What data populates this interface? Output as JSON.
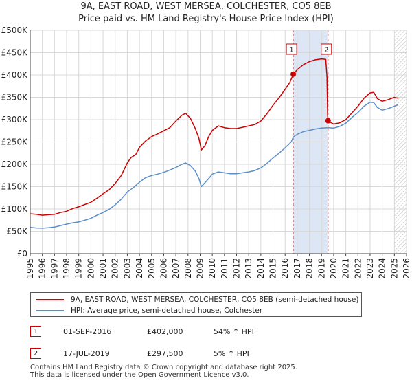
{
  "title_line1": "9A, EAST ROAD, WEST MERSEA, COLCHESTER, CO5 8EB",
  "title_line2": "Price paid vs. HM Land Registry's House Price Index (HPI)",
  "chart_data": {
    "type": "line",
    "title": "9A, EAST ROAD, WEST MERSEA, COLCHESTER, CO5 8EB",
    "subtitle": "Price paid vs. HM Land Registry's House Price Index (HPI)",
    "xlabel": "",
    "ylabel": "",
    "xlim": [
      1995,
      2026
    ],
    "ylim": [
      0,
      500000
    ],
    "y_ticks": [
      {
        "value": 0,
        "label": "£0"
      },
      {
        "value": 50000,
        "label": "£50K"
      },
      {
        "value": 100000,
        "label": "£100K"
      },
      {
        "value": 150000,
        "label": "£150K"
      },
      {
        "value": 200000,
        "label": "£200K"
      },
      {
        "value": 250000,
        "label": "£250K"
      },
      {
        "value": 300000,
        "label": "£300K"
      },
      {
        "value": 350000,
        "label": "£350K"
      },
      {
        "value": 400000,
        "label": "£400K"
      },
      {
        "value": 450000,
        "label": "£450K"
      },
      {
        "value": 500000,
        "label": "£500K"
      }
    ],
    "x_ticks": [
      "1995",
      "1996",
      "1997",
      "1998",
      "1999",
      "2000",
      "2001",
      "2002",
      "2003",
      "2004",
      "2005",
      "2006",
      "2007",
      "2008",
      "2009",
      "2010",
      "2011",
      "2012",
      "2013",
      "2014",
      "2015",
      "2016",
      "2017",
      "2018",
      "2019",
      "2020",
      "2021",
      "2022",
      "2023",
      "2024",
      "2025",
      "2026"
    ],
    "grid": true,
    "shaded_region": [
      2016.67,
      2019.54
    ],
    "hatched_region": [
      2025.0,
      2026
    ],
    "series": [
      {
        "name": "9A, EAST ROAD, WEST MERSEA, COLCHESTER, CO5 8EB (semi-detached house)",
        "color": "#cc0000",
        "points": [
          [
            1995.0,
            89000
          ],
          [
            1995.5,
            88000
          ],
          [
            1996.0,
            86000
          ],
          [
            1996.5,
            87000
          ],
          [
            1997.0,
            88000
          ],
          [
            1997.5,
            92000
          ],
          [
            1998.0,
            95000
          ],
          [
            1998.5,
            101000
          ],
          [
            1999.0,
            105000
          ],
          [
            1999.5,
            110000
          ],
          [
            2000.0,
            115000
          ],
          [
            2000.5,
            124000
          ],
          [
            2001.0,
            134000
          ],
          [
            2001.5,
            143000
          ],
          [
            2002.0,
            157000
          ],
          [
            2002.5,
            175000
          ],
          [
            2003.0,
            203000
          ],
          [
            2003.3,
            215000
          ],
          [
            2003.7,
            222000
          ],
          [
            2004.0,
            238000
          ],
          [
            2004.5,
            252000
          ],
          [
            2005.0,
            262000
          ],
          [
            2005.5,
            268000
          ],
          [
            2006.0,
            275000
          ],
          [
            2006.5,
            282000
          ],
          [
            2007.0,
            297000
          ],
          [
            2007.5,
            310000
          ],
          [
            2007.8,
            314000
          ],
          [
            2008.2,
            303000
          ],
          [
            2008.6,
            280000
          ],
          [
            2008.9,
            258000
          ],
          [
            2009.1,
            232000
          ],
          [
            2009.4,
            242000
          ],
          [
            2009.7,
            262000
          ],
          [
            2010.0,
            276000
          ],
          [
            2010.5,
            286000
          ],
          [
            2011.0,
            282000
          ],
          [
            2011.5,
            280000
          ],
          [
            2012.0,
            280000
          ],
          [
            2012.5,
            283000
          ],
          [
            2013.0,
            286000
          ],
          [
            2013.5,
            289000
          ],
          [
            2014.0,
            297000
          ],
          [
            2014.5,
            313000
          ],
          [
            2015.0,
            332000
          ],
          [
            2015.5,
            349000
          ],
          [
            2016.0,
            368000
          ],
          [
            2016.4,
            384000
          ],
          [
            2016.67,
            402000
          ],
          [
            2017.0,
            412000
          ],
          [
            2017.5,
            423000
          ],
          [
            2018.0,
            430000
          ],
          [
            2018.5,
            434000
          ],
          [
            2019.0,
            436000
          ],
          [
            2019.35,
            435000
          ],
          [
            2019.45,
            395000
          ],
          [
            2019.5,
            310000
          ],
          [
            2019.54,
            297500
          ],
          [
            2019.8,
            293000
          ],
          [
            2020.0,
            290000
          ],
          [
            2020.5,
            293000
          ],
          [
            2021.0,
            300000
          ],
          [
            2021.5,
            315000
          ],
          [
            2022.0,
            330000
          ],
          [
            2022.5,
            348000
          ],
          [
            2023.0,
            360000
          ],
          [
            2023.3,
            361000
          ],
          [
            2023.6,
            347000
          ],
          [
            2024.0,
            341000
          ],
          [
            2024.5,
            345000
          ],
          [
            2025.0,
            350000
          ],
          [
            2025.3,
            348000
          ]
        ]
      },
      {
        "name": "HPI: Average price, semi-detached house, Colchester",
        "color": "#5b8ec8",
        "points": [
          [
            1995.0,
            59000
          ],
          [
            1995.5,
            57500
          ],
          [
            1996.0,
            57000
          ],
          [
            1996.5,
            58000
          ],
          [
            1997.0,
            59500
          ],
          [
            1997.5,
            63000
          ],
          [
            1998.0,
            66000
          ],
          [
            1998.5,
            69000
          ],
          [
            1999.0,
            71000
          ],
          [
            1999.5,
            75000
          ],
          [
            2000.0,
            79000
          ],
          [
            2000.5,
            86000
          ],
          [
            2001.0,
            92000
          ],
          [
            2001.5,
            99000
          ],
          [
            2002.0,
            109000
          ],
          [
            2002.5,
            122000
          ],
          [
            2003.0,
            138000
          ],
          [
            2003.5,
            148000
          ],
          [
            2004.0,
            160000
          ],
          [
            2004.5,
            170000
          ],
          [
            2005.0,
            175000
          ],
          [
            2005.5,
            178000
          ],
          [
            2006.0,
            182000
          ],
          [
            2006.5,
            187000
          ],
          [
            2007.0,
            193000
          ],
          [
            2007.5,
            200000
          ],
          [
            2007.8,
            203000
          ],
          [
            2008.2,
            197000
          ],
          [
            2008.6,
            185000
          ],
          [
            2008.9,
            168000
          ],
          [
            2009.1,
            150000
          ],
          [
            2009.3,
            156000
          ],
          [
            2009.7,
            168000
          ],
          [
            2010.0,
            178000
          ],
          [
            2010.5,
            183000
          ],
          [
            2011.0,
            181000
          ],
          [
            2011.5,
            179000
          ],
          [
            2012.0,
            179000
          ],
          [
            2012.5,
            181000
          ],
          [
            2013.0,
            183000
          ],
          [
            2013.5,
            186000
          ],
          [
            2014.0,
            192000
          ],
          [
            2014.5,
            202000
          ],
          [
            2015.0,
            214000
          ],
          [
            2015.5,
            225000
          ],
          [
            2016.0,
            237000
          ],
          [
            2016.5,
            250000
          ],
          [
            2016.67,
            261000
          ],
          [
            2017.0,
            267000
          ],
          [
            2017.5,
            273000
          ],
          [
            2018.0,
            276000
          ],
          [
            2018.5,
            279000
          ],
          [
            2019.0,
            281000
          ],
          [
            2019.54,
            282000
          ],
          [
            2020.0,
            281000
          ],
          [
            2020.5,
            285000
          ],
          [
            2021.0,
            292000
          ],
          [
            2021.5,
            305000
          ],
          [
            2022.0,
            316000
          ],
          [
            2022.5,
            330000
          ],
          [
            2023.0,
            339000
          ],
          [
            2023.3,
            338000
          ],
          [
            2023.6,
            327000
          ],
          [
            2024.0,
            321000
          ],
          [
            2024.5,
            325000
          ],
          [
            2025.0,
            330000
          ],
          [
            2025.3,
            333000
          ]
        ]
      }
    ],
    "sales": [
      {
        "id": "1",
        "x": 2016.67,
        "y": 402000,
        "date": "01-SEP-2016",
        "price": "£402,000",
        "hpi": "54% ↑ HPI"
      },
      {
        "id": "2",
        "x": 2019.54,
        "y": 297500,
        "date": "17-JUL-2019",
        "price": "£297,500",
        "hpi": "5% ↑ HPI"
      }
    ]
  },
  "legend": {
    "red_label": "9A, EAST ROAD, WEST MERSEA, COLCHESTER, CO5 8EB (semi-detached house)",
    "blue_label": "HPI: Average price, semi-detached house, Colchester"
  },
  "footer": {
    "line1": "Contains HM Land Registry data © Crown copyright and database right 2025.",
    "line2": "This data is licensed under the Open Government Licence v3.0."
  }
}
